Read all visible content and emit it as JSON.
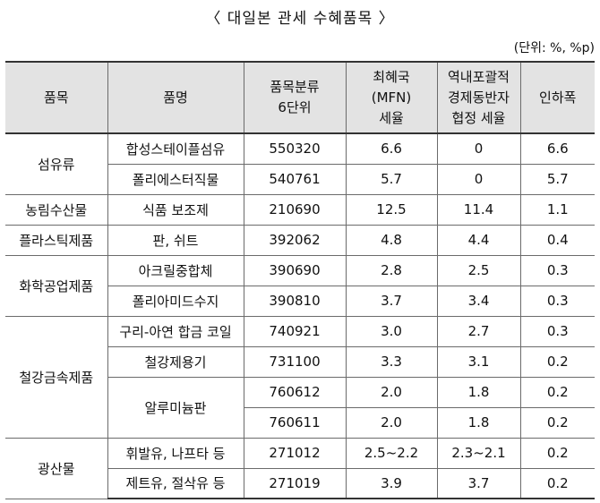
{
  "title": "〈 대일본 관세 수혜품목 〉",
  "unit": "(단위: %, %p)",
  "headers": {
    "category": "품목",
    "name": "품명",
    "hs_line1": "품목분류",
    "hs_line2": "6단위",
    "mfn_line1": "최혜국",
    "mfn_line2": "(MFN)",
    "mfn_line3": "세율",
    "rcep_line1": "역내포괄적",
    "rcep_line2": "경제동반자",
    "rcep_line3": "협정 세율",
    "cut": "인하폭"
  },
  "groups": [
    {
      "category": "섬유류",
      "rows": [
        {
          "name": "합성스테이플섬유",
          "code": "550320",
          "mfn": "6.6",
          "rcep": "0",
          "cut": "6.6"
        },
        {
          "name": "폴리에스터직물",
          "code": "540761",
          "mfn": "5.7",
          "rcep": "0",
          "cut": "5.7"
        }
      ]
    },
    {
      "category": "농림수산물",
      "rows": [
        {
          "name": "식품 보조제",
          "code": "210690",
          "mfn": "12.5",
          "rcep": "11.4",
          "cut": "1.1"
        }
      ]
    },
    {
      "category": "플라스틱제품",
      "rows": [
        {
          "name": "판, 쉬트",
          "code": "392062",
          "mfn": "4.8",
          "rcep": "4.4",
          "cut": "0.4"
        }
      ]
    },
    {
      "category": "화학공업제품",
      "rows": [
        {
          "name": "아크릴중합체",
          "code": "390690",
          "mfn": "2.8",
          "rcep": "2.5",
          "cut": "0.3"
        },
        {
          "name": "폴리아미드수지",
          "code": "390810",
          "mfn": "3.7",
          "rcep": "3.4",
          "cut": "0.3"
        }
      ]
    },
    {
      "category": "철강금속제품",
      "rows": [
        {
          "name": "구리-아연 합금 코일",
          "code": "740921",
          "mfn": "3.0",
          "rcep": "2.7",
          "cut": "0.3"
        },
        {
          "name": "철강제용기",
          "code": "731100",
          "mfn": "3.3",
          "rcep": "3.1",
          "cut": "0.2"
        },
        {
          "name": "알루미늄판",
          "code": "760612",
          "mfn": "2.0",
          "rcep": "1.8",
          "cut": "0.2"
        },
        {
          "name": "",
          "code": "760611",
          "mfn": "2.0",
          "rcep": "1.8",
          "cut": "0.2"
        }
      ]
    },
    {
      "category": "광산물",
      "rows": [
        {
          "name": "휘발유, 나프타 등",
          "code": "271012",
          "mfn": "2.5~2.2",
          "rcep": "2.3~2.1",
          "cut": "0.2"
        },
        {
          "name": "제트유, 절삭유 등",
          "code": "271019",
          "mfn": "3.9",
          "rcep": "3.7",
          "cut": "0.2"
        }
      ]
    }
  ]
}
